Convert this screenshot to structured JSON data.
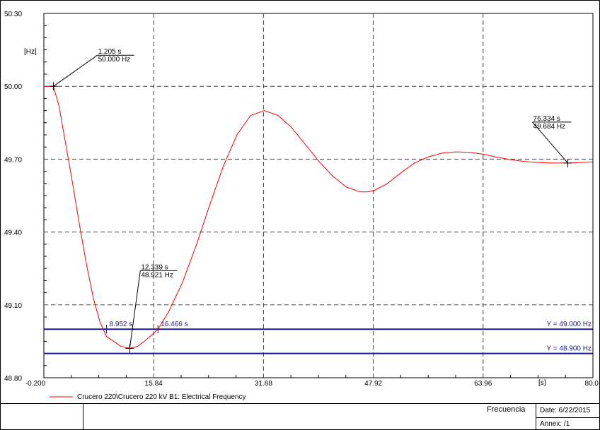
{
  "chart_data": {
    "type": "line",
    "title": "",
    "ylabel": "[Hz]",
    "xlabel": "[s]",
    "xlim": [
      -0.2,
      80.0
    ],
    "ylim": [
      48.8,
      50.3
    ],
    "xticks": [
      -0.2,
      15.84,
      31.88,
      47.92,
      63.96,
      80.0
    ],
    "xtick_labels": [
      "-0.200",
      "15.84",
      "31.88",
      "47.92",
      "63.96",
      "80.0"
    ],
    "yticks": [
      48.8,
      49.1,
      49.4,
      49.7,
      50.0,
      50.3
    ],
    "ytick_labels": [
      "48.80",
      "49.10",
      "49.40",
      "49.70",
      "50.00",
      "50.30"
    ],
    "grid": true,
    "series": [
      {
        "name": "Crucero 220\\Crucero 220 kV B1: Electrical Frequency",
        "color": "#ff0000",
        "x": [
          -0.2,
          1.2,
          2.0,
          3.0,
          4.0,
          5.0,
          6.0,
          7.0,
          8.0,
          8.95,
          10.0,
          11.0,
          12.34,
          13.5,
          14.5,
          15.5,
          16.47,
          18.0,
          20.0,
          22.0,
          24.0,
          26.0,
          28.0,
          30.0,
          32.0,
          34.0,
          36.0,
          38.0,
          40.0,
          42.0,
          44.0,
          46.0,
          47.0,
          48.0,
          50.0,
          52.0,
          54.0,
          56.0,
          58.0,
          60.0,
          62.0,
          64.0,
          66.0,
          68.0,
          70.0,
          72.0,
          74.0,
          76.33,
          78.0,
          80.0
        ],
        "y": [
          50.0,
          50.0,
          49.92,
          49.76,
          49.6,
          49.43,
          49.27,
          49.13,
          49.03,
          48.97,
          48.95,
          48.93,
          48.921,
          48.93,
          48.95,
          48.975,
          49.0,
          49.07,
          49.19,
          49.34,
          49.51,
          49.67,
          49.8,
          49.88,
          49.9,
          49.88,
          49.83,
          49.76,
          49.69,
          49.63,
          49.585,
          49.565,
          49.565,
          49.57,
          49.6,
          49.645,
          49.685,
          49.71,
          49.725,
          49.73,
          49.728,
          49.72,
          49.708,
          49.698,
          49.69,
          49.686,
          49.684,
          49.684,
          49.686,
          49.688
        ]
      }
    ],
    "horizontal_lines": [
      {
        "y": 49.0,
        "label": "Y = 49.000 Hz",
        "color": "#1a1a8c"
      },
      {
        "y": 48.9,
        "label": "Y = 48.900 Hz",
        "color": "#1a1a8c"
      }
    ],
    "annotations": [
      {
        "x": 1.205,
        "y": 50.0,
        "line1": "1.205 s",
        "line2": "50.000 Hz"
      },
      {
        "x": 12.339,
        "y": 48.921,
        "line1": "12.339 s",
        "line2": "48.921 Hz"
      },
      {
        "x": 76.334,
        "y": 49.684,
        "line1": "76.334 s",
        "line2": "49.684 Hz"
      }
    ],
    "crossings": [
      {
        "x": 8.952,
        "label": "8.952 s"
      },
      {
        "x": 16.466,
        "label": "16.466 s"
      }
    ]
  },
  "legend": {
    "label": "Crucero 220\\Crucero 220 kV B1: Electrical Frequency",
    "color": "#ff0000"
  },
  "footer": {
    "title": "Frecuencia",
    "date": "Date: 6/22/2015",
    "annex": "Annex:  /1"
  }
}
